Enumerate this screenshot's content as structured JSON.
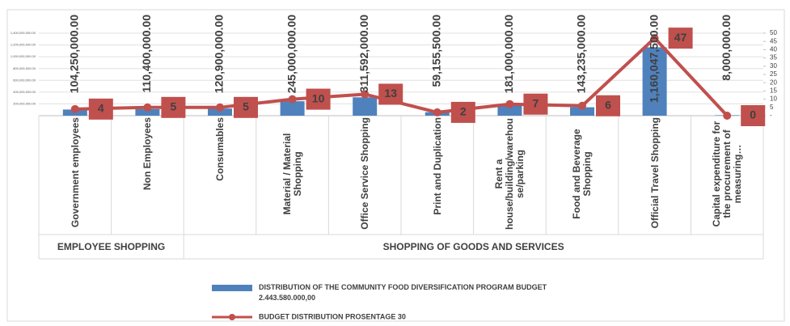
{
  "chart_data": {
    "type": "bar-line",
    "categories": [
      "Government employees",
      "Non Employees",
      "Consumables",
      "Material / Material Shopping",
      "Office Service Shopping",
      "Print and Duplication",
      "Rent a house/building/warehouse/parking",
      "Food and Beverage Shopping",
      "Official Travel Shopping",
      "Capital expenditure for the procurement of measuring…"
    ],
    "groups": [
      {
        "label": "EMPLOYEE SHOPPING",
        "categories": [
          "Government employees",
          "Non Employees"
        ]
      },
      {
        "label": "SHOPPING OF GOODS AND SERVICES",
        "categories": [
          "Consumables",
          "Material / Material Shopping",
          "Office Service Shopping",
          "Print and Duplication",
          "Rent a house/building/warehouse/parking",
          "Food and Beverage Shopping",
          "Official Travel Shopping",
          "Capital expenditure for the procurement of measuring…"
        ]
      }
    ],
    "series": [
      {
        "name": "DISTRIBUTION OF THE COMMUNITY FOOD DIVERSIFICATION PROGRAM BUDGET 2.443.580.000,00",
        "type": "bar",
        "color": "#4f81bd",
        "values": [
          104250000,
          110400000,
          120900000,
          245000000,
          311592000,
          59155500,
          181000000,
          143235000,
          1160047500,
          8000000
        ],
        "value_labels": [
          "104,250,000.00",
          "110,400,000.00",
          "120,900,000.00",
          "245,000,000.00",
          "311,592,000.00",
          "59,155,500.00",
          "181,000,000.00",
          "143,235,000.00",
          "1,160,047,500.00",
          "8,000,000.00"
        ]
      },
      {
        "name": "BUDGET DISTRIBUTION PROSENTAGE  30",
        "type": "line",
        "axis": "y2",
        "color": "#c0504d",
        "values": [
          4,
          5,
          5,
          10,
          13,
          2,
          7,
          6,
          47,
          0
        ]
      }
    ],
    "ylim": [
      0,
      1400000000
    ],
    "yticks": [
      {
        "value": 200000000,
        "label": "200,000,000.00"
      },
      {
        "value": 400000000,
        "label": "400,000,000.00"
      },
      {
        "value": 600000000,
        "label": "600,000,000.00"
      },
      {
        "value": 800000000,
        "label": "800,000,000.00"
      },
      {
        "value": 1000000000,
        "label": "1,000,000,000.00"
      },
      {
        "value": 1200000000,
        "label": "1,200,000,000.00"
      },
      {
        "value": 1400000000,
        "label": "1,400,000,000.00"
      }
    ],
    "y2lim": [
      0,
      50
    ],
    "y2ticks": [
      {
        "value": 0,
        "label": "-"
      },
      5,
      10,
      15,
      20,
      25,
      30,
      35,
      40,
      45,
      50
    ],
    "grid": true
  }
}
